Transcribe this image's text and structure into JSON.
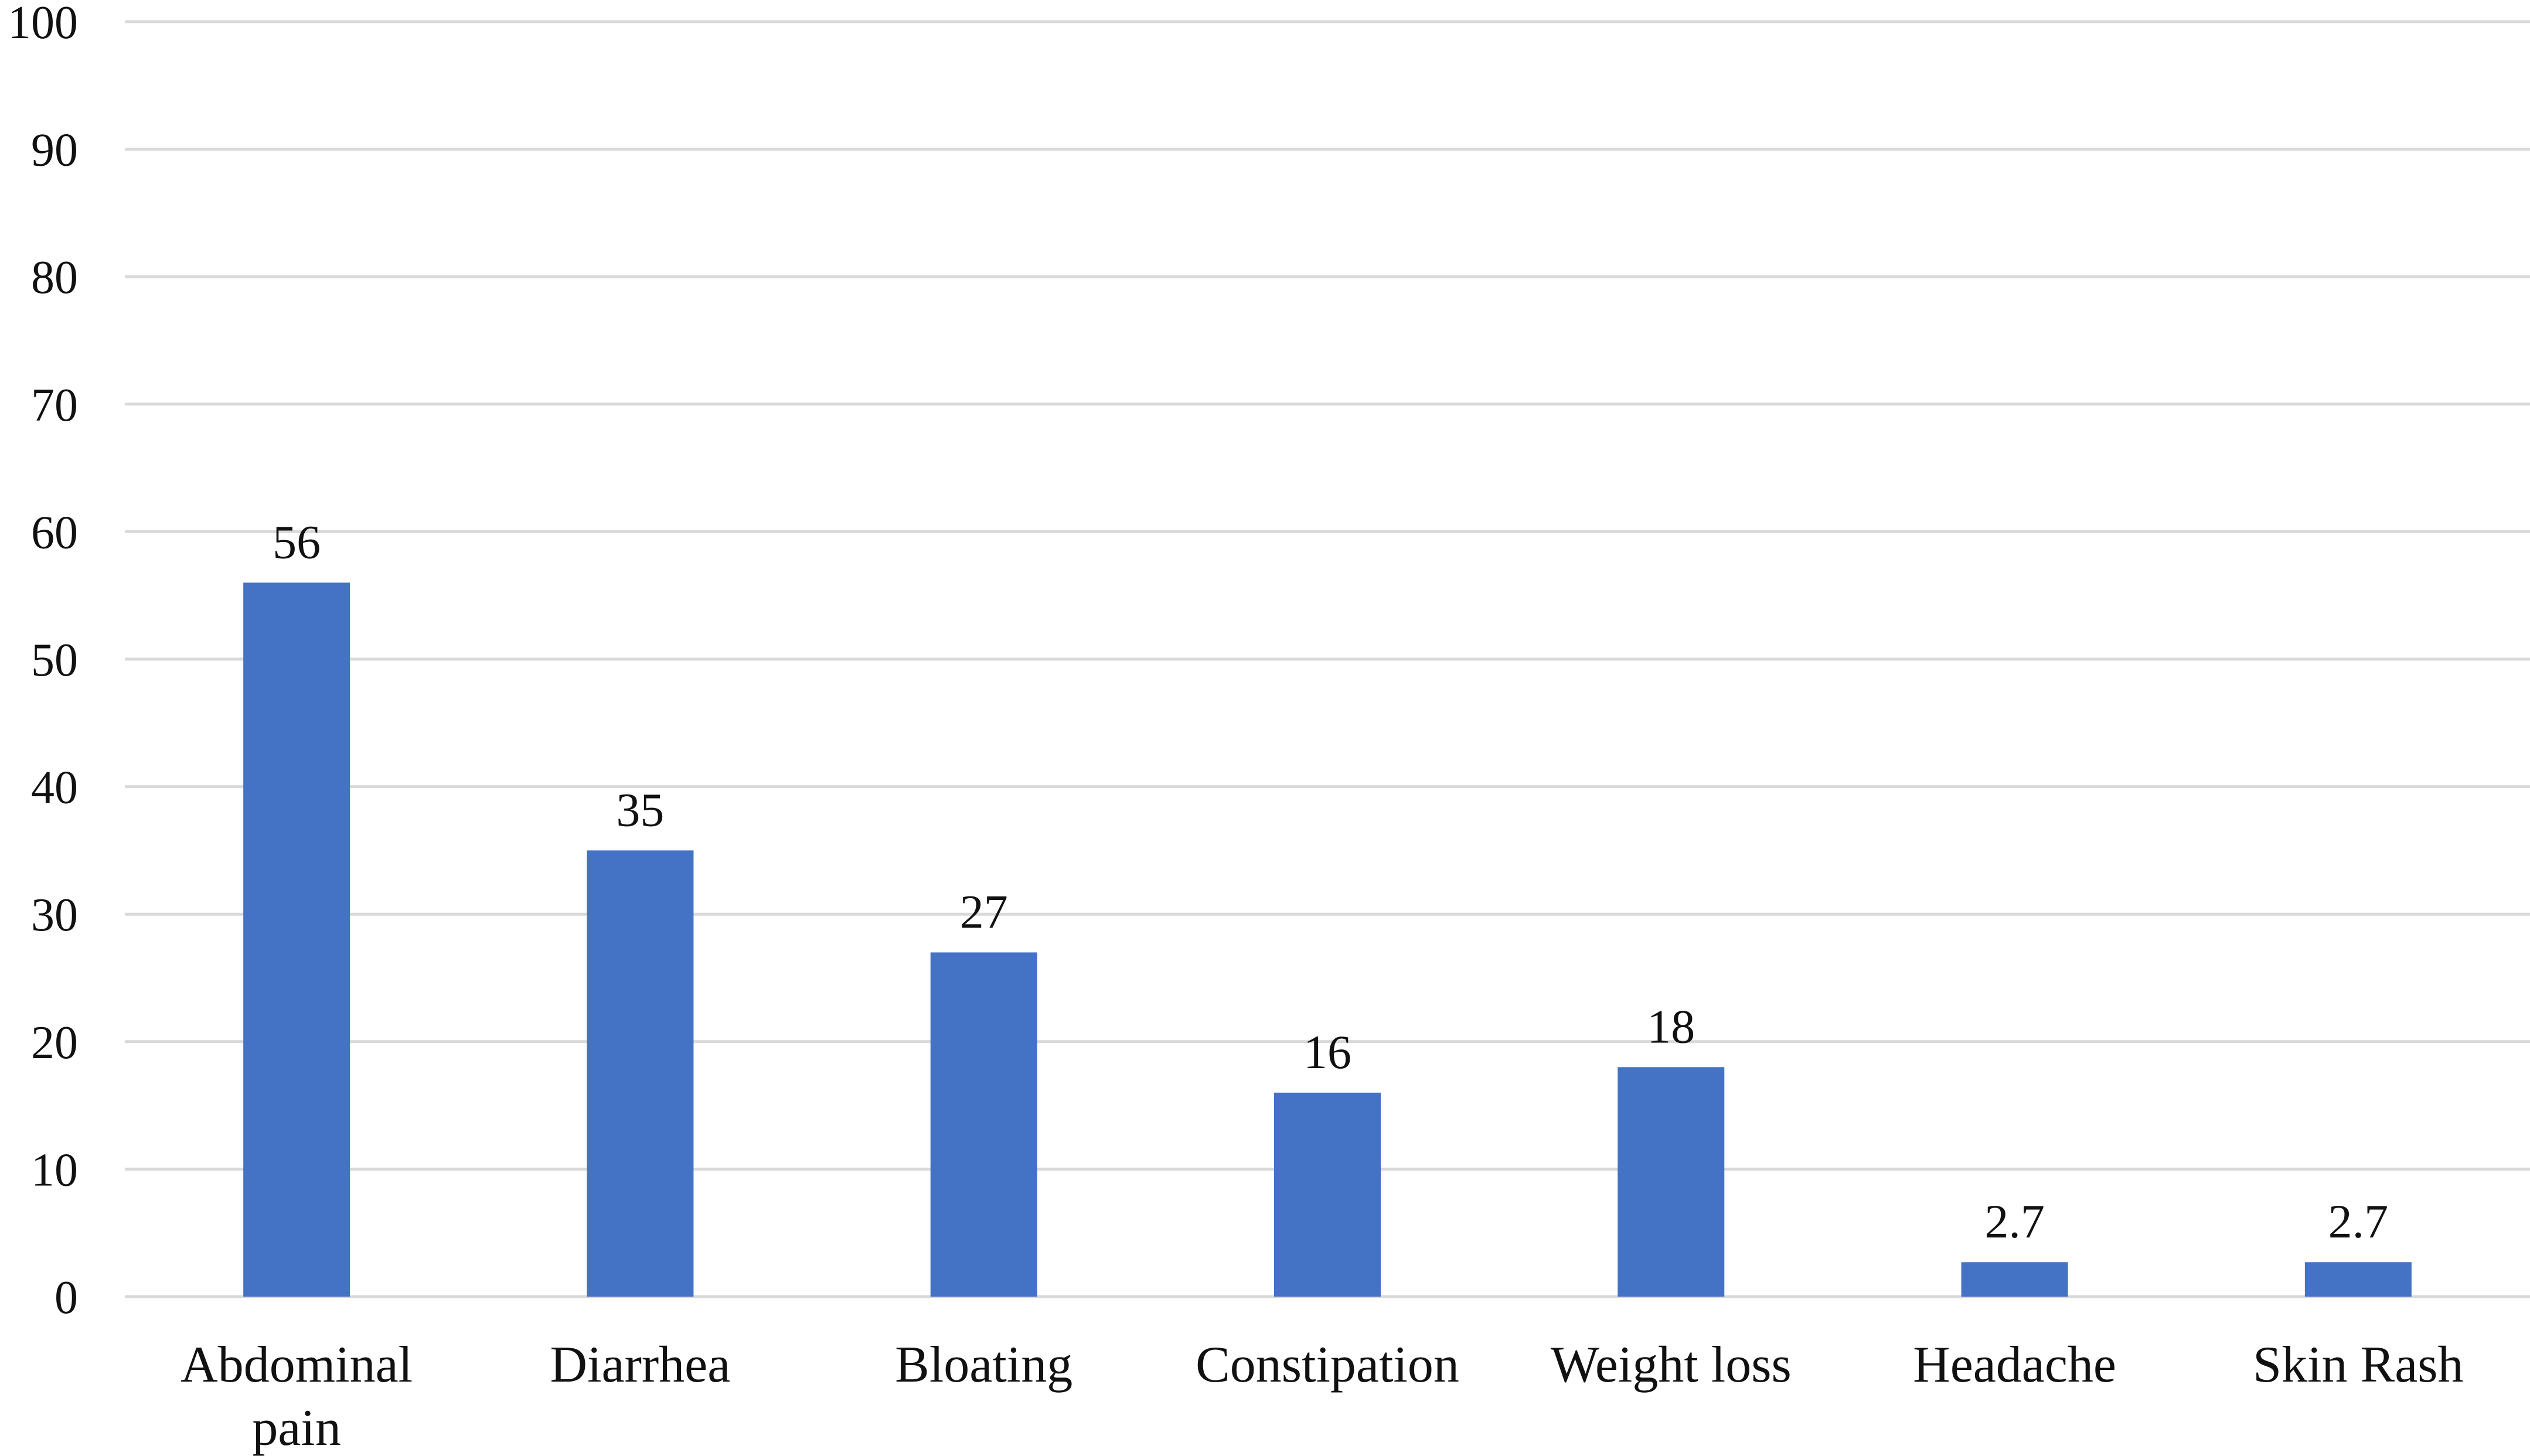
{
  "chart_data": {
    "type": "bar",
    "title": "",
    "xlabel": "",
    "ylabel": "",
    "categories": [
      "Abdominal pain",
      "Diarrhea",
      "Bloating",
      "Constipation",
      "Weight loss",
      "Headache",
      "Skin Rash"
    ],
    "values": [
      56,
      35,
      27,
      16,
      18,
      2.7,
      2.7
    ],
    "data_labels": [
      "56",
      "35",
      "27",
      "16",
      "18",
      "2.7",
      "2.7"
    ],
    "ylim": [
      0,
      100
    ],
    "yticks": [
      0,
      10,
      20,
      30,
      40,
      50,
      60,
      70,
      80,
      90,
      100
    ],
    "grid": true,
    "legend": "none",
    "colors": {
      "bar": "#4472C4",
      "grid": "#D9D9D9",
      "text": "#111111"
    }
  }
}
